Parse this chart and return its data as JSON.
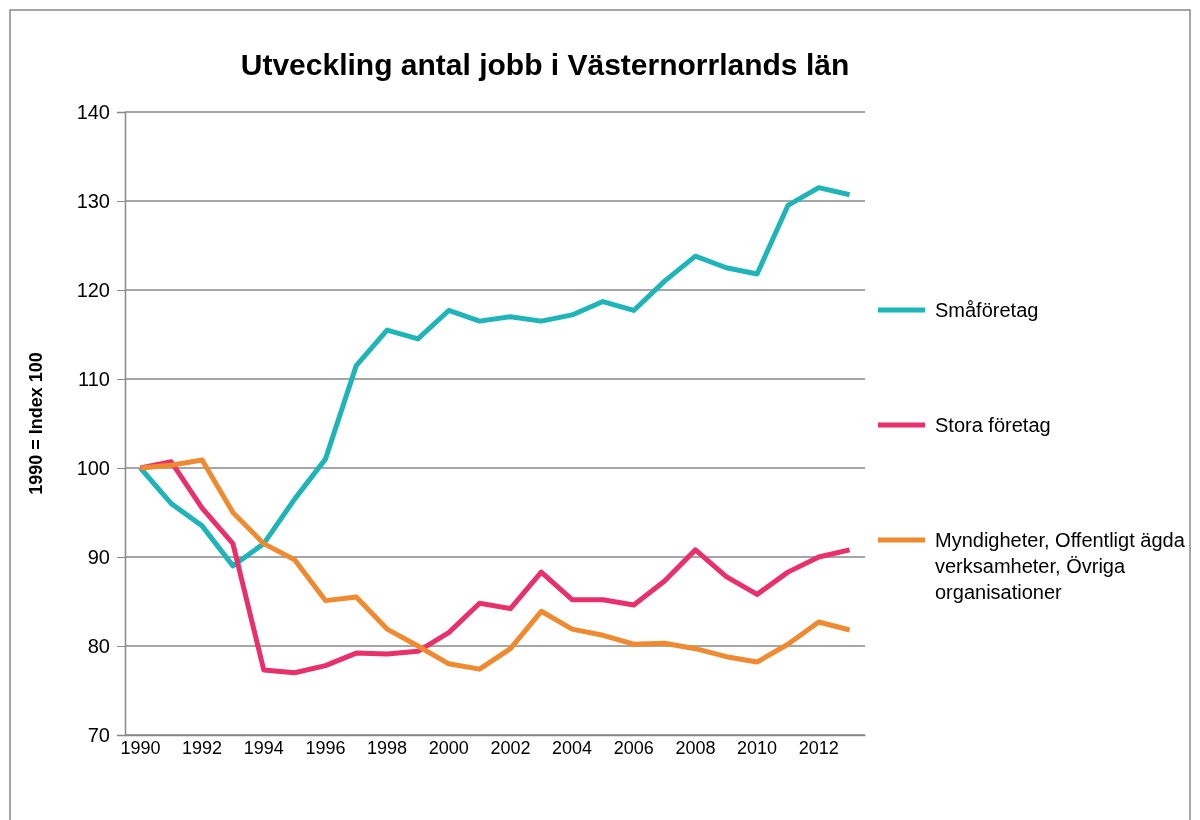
{
  "chart_data": {
    "type": "line",
    "title": "Utveckling antal jobb i Västernorrlands län",
    "ylabel": "1990 = Index 100",
    "categories": [
      "1990",
      null,
      "1992",
      null,
      "1994",
      null,
      "1996",
      null,
      "1998",
      null,
      "2000",
      null,
      "2002",
      null,
      "2004",
      null,
      "2006",
      null,
      "2008",
      null,
      "2010",
      null,
      "2012",
      null
    ],
    "series": [
      {
        "name": "Småföretag",
        "color": "#1fb5b8",
        "values": [
          100,
          96,
          93.5,
          89,
          91.5,
          96.5,
          101,
          111.5,
          115.5,
          114.5,
          117.7,
          116.5,
          117,
          116.5,
          117.2,
          118.7,
          117.7,
          121,
          123.8,
          122.5,
          121.8,
          129.5,
          131.5,
          130.7
        ]
      },
      {
        "name": "Stora företag",
        "color": "#e8306a",
        "values": [
          100,
          100.7,
          95.5,
          91.5,
          77.3,
          77,
          77.8,
          79.2,
          79.1,
          79.4,
          81.5,
          84.8,
          84.2,
          88.3,
          85.2,
          85.2,
          84.6,
          87.3,
          90.8,
          87.8,
          85.8,
          88.3,
          90,
          90.8
        ]
      },
      {
        "name": "Myndigheter, Offentligt ägda verksamheter, Övriga organisationer",
        "color": "#f08a30",
        "values": [
          100,
          100.3,
          100.9,
          95,
          91.5,
          89.7,
          85.1,
          85.5,
          81.9,
          80,
          78,
          77.4,
          79.7,
          83.9,
          81.9,
          81.2,
          80.2,
          80.3,
          79.7,
          78.8,
          78.2,
          80.2,
          82.7,
          81.8
        ]
      }
    ],
    "ylim": [
      70,
      140
    ],
    "yticks": [
      70,
      80,
      90,
      100,
      110,
      120,
      130,
      140
    ],
    "grid": "y",
    "legend": "right",
    "marker": "none",
    "line_style": "solid"
  }
}
